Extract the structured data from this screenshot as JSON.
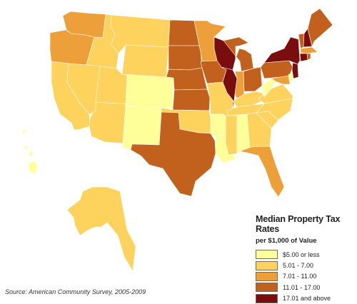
{
  "legend": {
    "title": "Median Property Tax Rates",
    "subtitle": "per $1,000 of Value",
    "items": [
      {
        "label": "$5.00 or less",
        "color": "#ffff99"
      },
      {
        "label": "5.01 - 7.00",
        "color": "#fdd35e"
      },
      {
        "label": "7.01 - 11.00",
        "color": "#eda03a"
      },
      {
        "label": "11.01 - 17.00",
        "color": "#c1611d"
      },
      {
        "label": "17.01 and above",
        "color": "#7a0d0d"
      }
    ]
  },
  "source": "Source: American Community Survey, 2005-2009",
  "state_classes": {
    "WA": 2,
    "OR": 2,
    "CA": 1,
    "NV": 1,
    "ID": 1,
    "MT": 1,
    "WY": 1,
    "UT": 1,
    "AZ": 1,
    "CO": 0,
    "NM": 0,
    "ND": 3,
    "SD": 3,
    "NE": 3,
    "KS": 3,
    "OK": 1,
    "TX": 3,
    "MN": 2,
    "IA": 3,
    "MO": 1,
    "AR": 0,
    "LA": 0,
    "WI": 4,
    "IL": 4,
    "MI": 3,
    "IN": 2,
    "OH": 3,
    "KY": 1,
    "TN": 1,
    "MS": 1,
    "AL": 0,
    "GA": 1,
    "FL": 2,
    "SC": 1,
    "NC": 1,
    "VA": 1,
    "WV": 0,
    "PA": 3,
    "NY": 4,
    "VT": 3,
    "NH": 4,
    "ME": 3,
    "MA": 2,
    "CT": 4,
    "RI": 3,
    "NJ": 4,
    "DE": 0,
    "MD": 2,
    "AK": 1,
    "HI": 0
  }
}
